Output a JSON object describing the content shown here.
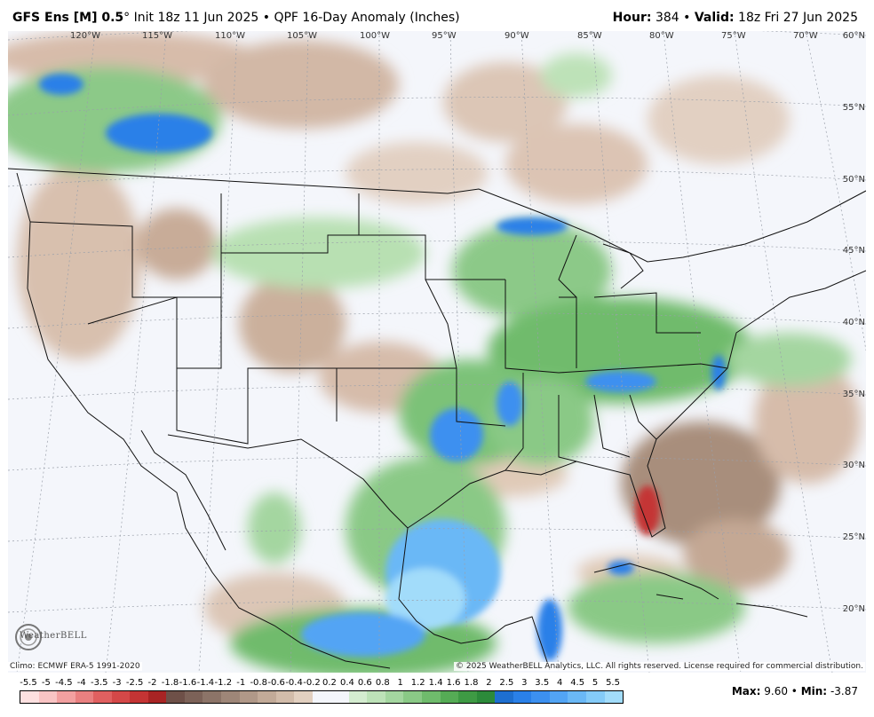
{
  "header": {
    "model": "GFS Ens [M] 0.5",
    "degree": "°",
    "init": "Init 18z 11 Jun 2025",
    "bullet": "•",
    "product": "QPF 16-Day Anomaly (Inches)",
    "hour_label": "Hour:",
    "hour_value": "384",
    "valid_label": "Valid:",
    "valid_value": "18z Fri 27 Jun 2025"
  },
  "longitude_labels": [
    "120°W",
    "115°W",
    "110°W",
    "105°W",
    "100°W",
    "95°W",
    "90°W",
    "85°W",
    "80°W",
    "75°W",
    "70°W"
  ],
  "latitude_labels": [
    "60°N",
    "55°N",
    "50°N",
    "45°N",
    "40°N",
    "35°N",
    "30°N",
    "25°N",
    "20°N"
  ],
  "footer": {
    "climo": "Climo: ECMWF ERA-5 1991-2020",
    "copyright": "© 2025 WeatherBELL Analytics, LLC. All rights reserved. License required for commercial distribution.",
    "logo_name": "WeatherBELL"
  },
  "colorbar": {
    "labels": [
      "-5.5",
      "-5",
      "-4.5",
      "-4",
      "-3.5",
      "-3",
      "-2.5",
      "-2",
      "-1.8",
      "-1.6",
      "-1.4",
      "-1.2",
      "-1",
      "-0.8",
      "-0.6",
      "-0.4",
      "-0.2",
      "0.2",
      "0.4",
      "0.6",
      "0.8",
      "1",
      "1.2",
      "1.4",
      "1.6",
      "1.8",
      "2",
      "2.5",
      "3",
      "3.5",
      "4",
      "4.5",
      "5",
      "5.5"
    ],
    "colors": [
      "#fde0e0",
      "#f9c4c4",
      "#f2a0a0",
      "#e98080",
      "#e06060",
      "#d44848",
      "#c43434",
      "#a82424",
      "#6e5048",
      "#7c6258",
      "#8c7468",
      "#9e8678",
      "#b09888",
      "#c2aa98",
      "#d2bcaa",
      "#e2d0c0",
      "#f4f6fb",
      "#f4f6fb",
      "#d4ecd0",
      "#bde2b8",
      "#a4d6a0",
      "#8ac986",
      "#6fbb6c",
      "#55ab55",
      "#3e9a44",
      "#2c8a3a",
      "#1e6fd0",
      "#2a80e8",
      "#3c90f0",
      "#52a4f4",
      "#6ab8f6",
      "#84cbf8",
      "#a2dcfa"
    ],
    "colors_note_hidden": ""
  },
  "stats": {
    "max_label": "Max:",
    "max_value": "9.60",
    "bullet": "•",
    "min_label": "Min:",
    "min_value": "-3.87"
  }
}
